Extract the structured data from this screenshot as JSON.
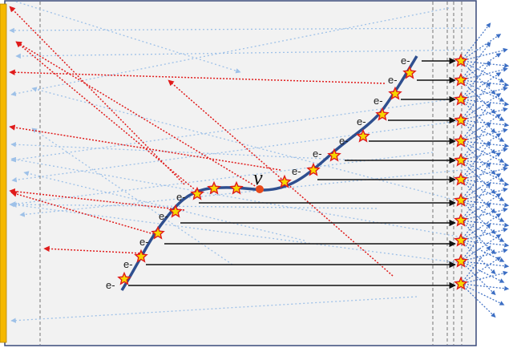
{
  "diagram": {
    "neutrino_symbol": "ν",
    "electron_label": "e-",
    "electron_label_count": 12,
    "colors": {
      "background": "#f2f2f2",
      "frame": "#3a4a7a",
      "detector_plate": "#f5b800",
      "track": "#2f4f8f",
      "star_fill": "#f5d800",
      "star_stroke": "#e01b1b",
      "vertex": "#e84a1a",
      "electron_arrow": "#111111",
      "backward_ray": "#e01b1b",
      "scatter_ray_dotted": "#9ec1e8",
      "outgoing_ray": "#3d6fc4",
      "guide_line": "#555555"
    }
  }
}
